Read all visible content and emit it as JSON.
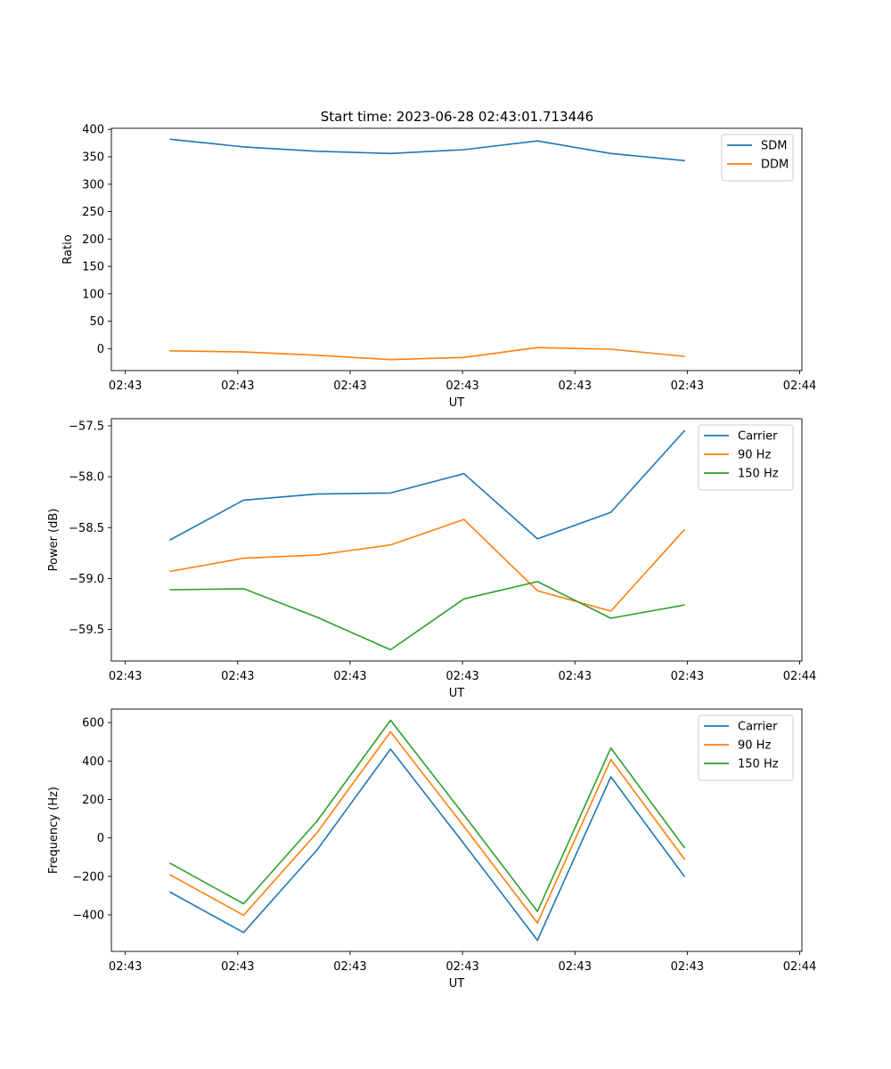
{
  "figure": {
    "title": "Start time: 2023-06-28 02:43:01.713446"
  },
  "colors": {
    "blue": "#1f77b4",
    "orange": "#ff7f0e",
    "green": "#2ca02c"
  },
  "chart_data": [
    {
      "type": "line",
      "title": "Start time: 2023-06-28 02:43:01.713446",
      "xlabel": "UT",
      "ylabel": "Ratio",
      "x": [
        1,
        2,
        3,
        4,
        5,
        6,
        7,
        8
      ],
      "xlim": [
        0.2,
        9.6
      ],
      "x_ticks": [
        0.39,
        1.92,
        3.45,
        4.98,
        6.51,
        8.04,
        9.57
      ],
      "x_tick_labels": [
        "02:43",
        "02:43",
        "02:43",
        "02:43",
        "02:43",
        "02:43",
        "02:44"
      ],
      "ylim": [
        -40,
        402
      ],
      "y_ticks": [
        0,
        50,
        100,
        150,
        200,
        250,
        300,
        350,
        400
      ],
      "y_tick_labels": [
        "0",
        "50",
        "100",
        "150",
        "200",
        "250",
        "300",
        "350",
        "400"
      ],
      "legend": "top-right",
      "grid": false,
      "series": [
        {
          "name": "SDM",
          "color": "#1f77b4",
          "values": [
            382,
            368,
            360,
            356,
            363,
            379,
            356,
            343
          ]
        },
        {
          "name": "DDM",
          "color": "#ff7f0e",
          "values": [
            -4,
            -6,
            -12,
            -20,
            -16,
            2,
            -1,
            -14
          ]
        }
      ]
    },
    {
      "type": "line",
      "title": "",
      "xlabel": "UT",
      "ylabel": "Power (dB)",
      "x": [
        1,
        2,
        3,
        4,
        5,
        6,
        7,
        8
      ],
      "xlim": [
        0.2,
        9.6
      ],
      "x_ticks": [
        0.39,
        1.92,
        3.45,
        4.98,
        6.51,
        8.04,
        9.57
      ],
      "x_tick_labels": [
        "02:43",
        "02:43",
        "02:43",
        "02:43",
        "02:43",
        "02:43",
        "02:44"
      ],
      "ylim": [
        -59.81,
        -57.43
      ],
      "y_ticks": [
        -59.5,
        -59.0,
        -58.5,
        -58.0,
        -57.5
      ],
      "y_tick_labels": [
        "−59.5",
        "−59.0",
        "−58.5",
        "−58.0",
        "−57.5"
      ],
      "legend": "top-right",
      "grid": false,
      "series": [
        {
          "name": "Carrier",
          "color": "#1f77b4",
          "values": [
            -58.62,
            -58.23,
            -58.17,
            -58.16,
            -57.97,
            -58.61,
            -58.35,
            -57.55
          ]
        },
        {
          "name": "90 Hz",
          "color": "#ff7f0e",
          "values": [
            -58.93,
            -58.8,
            -58.77,
            -58.67,
            -58.42,
            -59.12,
            -59.32,
            -58.52
          ]
        },
        {
          "name": "150 Hz",
          "color": "#2ca02c",
          "values": [
            -59.11,
            -59.1,
            -59.38,
            -59.7,
            -59.2,
            -59.03,
            -59.39,
            -59.26
          ]
        }
      ]
    },
    {
      "type": "line",
      "title": "",
      "xlabel": "UT",
      "ylabel": "Frequency (Hz)",
      "x": [
        1,
        2,
        3,
        4,
        5,
        6,
        7,
        8
      ],
      "xlim": [
        0.2,
        9.6
      ],
      "x_ticks": [
        0.39,
        1.92,
        3.45,
        4.98,
        6.51,
        8.04,
        9.57
      ],
      "x_tick_labels": [
        "02:43",
        "02:43",
        "02:43",
        "02:43",
        "02:43",
        "02:43",
        "02:44"
      ],
      "ylim": [
        -590,
        670
      ],
      "y_ticks": [
        -400,
        -200,
        0,
        200,
        400,
        600
      ],
      "y_tick_labels": [
        "−400",
        "−200",
        "0",
        "200",
        "400",
        "600"
      ],
      "legend": "top-right",
      "grid": false,
      "series": [
        {
          "name": "Carrier",
          "color": "#1f77b4",
          "values": [
            -282,
            -492,
            -62,
            462,
            -30,
            -532,
            318,
            -200
          ]
        },
        {
          "name": "90 Hz",
          "color": "#ff7f0e",
          "values": [
            -192,
            -402,
            28,
            552,
            60,
            -442,
            408,
            -110
          ]
        },
        {
          "name": "150 Hz",
          "color": "#2ca02c",
          "values": [
            -132,
            -342,
            88,
            612,
            120,
            -382,
            468,
            -50
          ]
        }
      ]
    }
  ]
}
